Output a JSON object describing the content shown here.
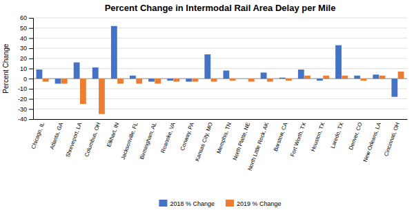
{
  "chart_data": {
    "type": "bar",
    "title": "Percent Change in Intermodal Rail Area Delay per Mile",
    "ylabel": "Percent Change",
    "categories": [
      "Chicago, IL",
      "Atlanta, GA",
      "Shreveport, LA",
      "Columbus, OH",
      "Elkhart, IN",
      "Jacksonville, FL",
      "Birmingham, AL",
      "Roanoke, VA",
      "Conway, PA",
      "Kansas City, MO",
      "Memphis, TN",
      "North Platte, NE",
      "North Little Rock, AK",
      "Barstow, CA",
      "Fort Worth, TX",
      "Houston, TX",
      "Laredo, TX",
      "Denver, CO",
      "New Orleans, LA",
      "Cincinnati, OH"
    ],
    "series": [
      {
        "name": "2018 % Change",
        "color": "#4472C4",
        "values": [
          9,
          -5,
          16,
          11,
          52,
          3,
          -3,
          -2,
          -3,
          24,
          8,
          0,
          6,
          1,
          9,
          -2,
          33,
          3,
          4,
          -18
        ]
      },
      {
        "name": "2019 % Change",
        "color": "#ED7D31",
        "values": [
          -3,
          -5,
          -25,
          -35,
          -5,
          -5,
          -5,
          -3,
          -3,
          -3,
          -2,
          -3,
          -3,
          -2,
          3,
          3,
          3,
          -2,
          3,
          7
        ]
      }
    ],
    "ylim": [
      -40,
      60
    ],
    "yticks": [
      -40,
      -30,
      -20,
      -10,
      0,
      10,
      20,
      30,
      40,
      50,
      60
    ],
    "grid": true,
    "legend": "bottom"
  }
}
